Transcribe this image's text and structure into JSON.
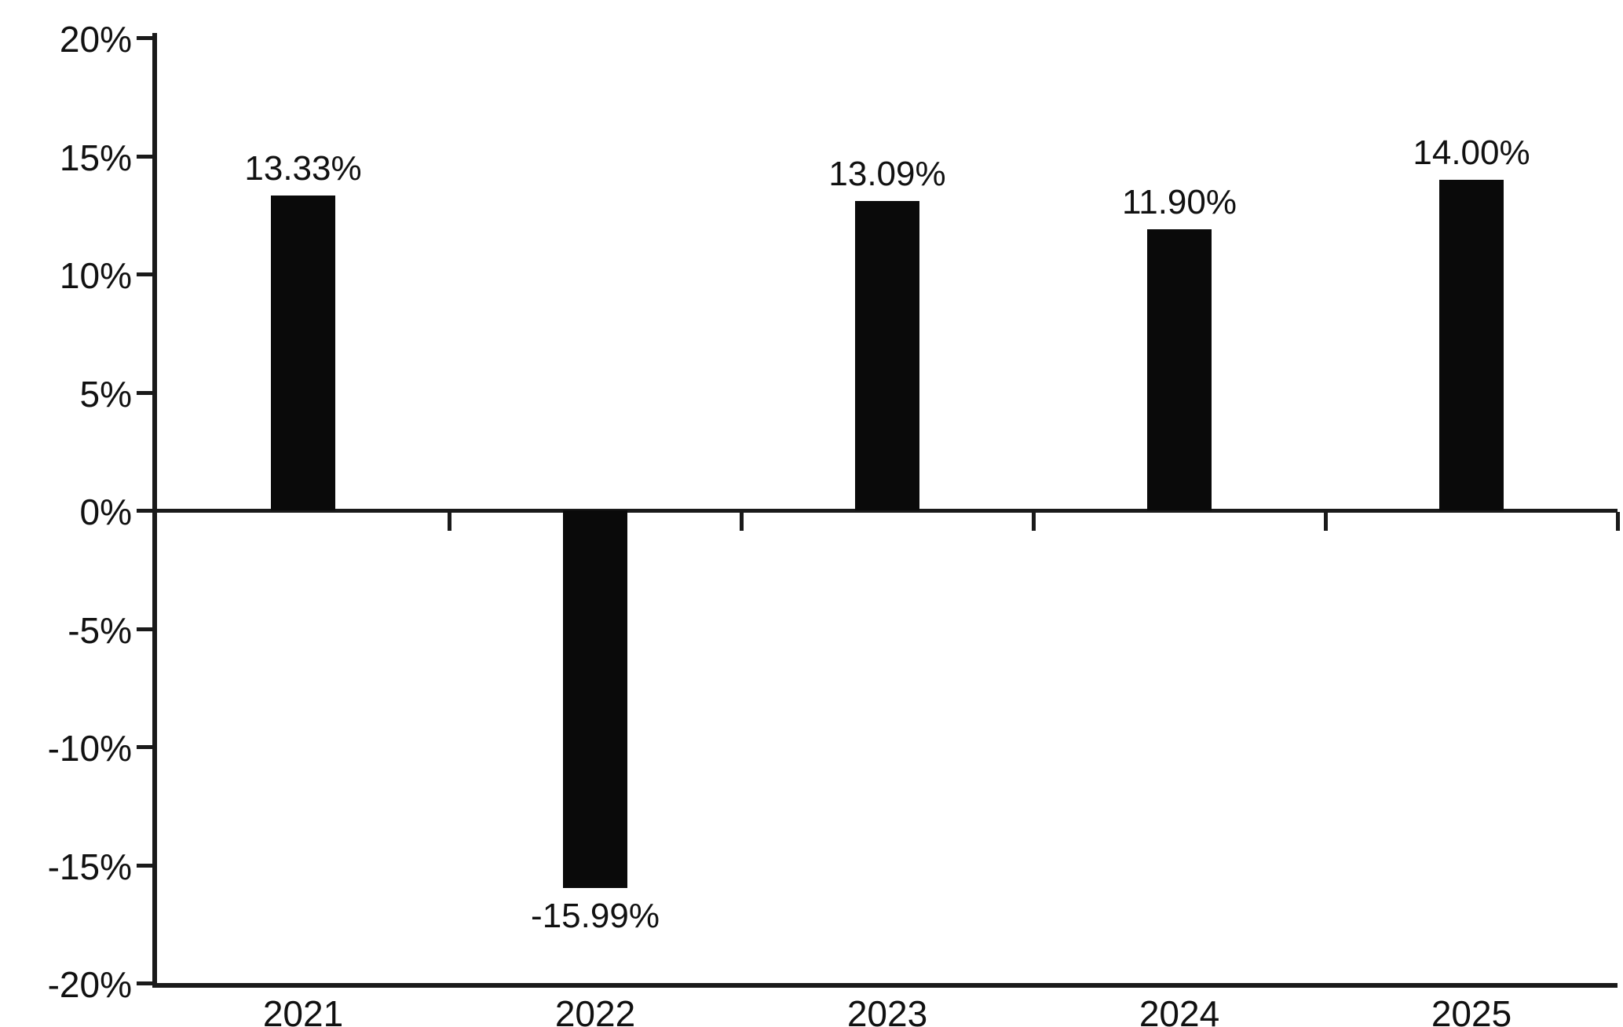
{
  "chart_data": {
    "type": "bar",
    "title": "",
    "xlabel": "",
    "ylabel": "",
    "categories": [
      "2021",
      "2022",
      "2023",
      "2024",
      "2025"
    ],
    "values": [
      13.33,
      -15.99,
      13.09,
      11.9,
      14.0
    ],
    "value_labels": [
      "13.33%",
      "-15.99%",
      "13.09%",
      "11.90%",
      "14.00%"
    ],
    "ylim": [
      -20,
      20
    ],
    "ytick_step": 5,
    "ytick_labels": [
      "20%",
      "15%",
      "10%",
      "5%",
      "0%",
      "-5%",
      "-10%",
      "-15%",
      "-20%"
    ],
    "grid": false,
    "legend_position": "none",
    "bar_color": "#0a0a0a",
    "axis_color": "#1a1a1a",
    "text_color": "#111111",
    "background_color": "#ffffff"
  }
}
